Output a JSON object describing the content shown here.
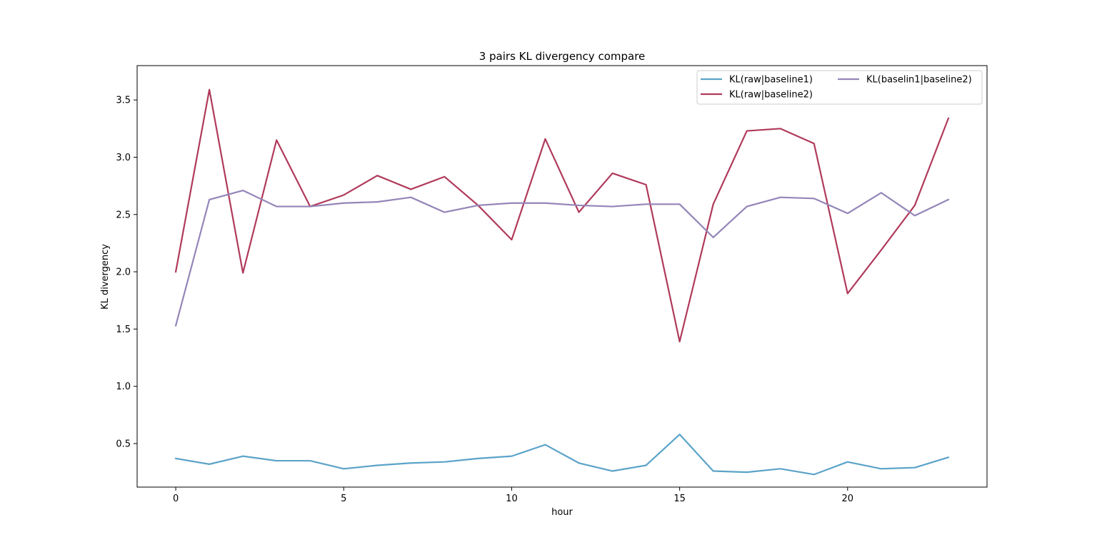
{
  "chart_data": {
    "type": "line",
    "title": "3 pairs KL divergency compare",
    "xlabel": "hour",
    "ylabel": "KL divergency",
    "xlim": [
      -1.15,
      24.15
    ],
    "ylim": [
      0.12,
      3.8
    ],
    "xticks": [
      0,
      5,
      10,
      15,
      20
    ],
    "xtick_labels": [
      "0",
      "5",
      "10",
      "15",
      "20"
    ],
    "yticks": [
      0.5,
      1.0,
      1.5,
      2.0,
      2.5,
      3.0,
      3.5
    ],
    "ytick_labels": [
      "0.5",
      "1.0",
      "1.5",
      "2.0",
      "2.5",
      "3.0",
      "3.5"
    ],
    "grid": false,
    "legend": {
      "position": "top-right",
      "columns": 2
    },
    "x": [
      0,
      1,
      2,
      3,
      4,
      5,
      6,
      7,
      8,
      9,
      10,
      11,
      12,
      13,
      14,
      15,
      16,
      17,
      18,
      19,
      20,
      21,
      22,
      23
    ],
    "series": [
      {
        "name": "KL(raw|baseline1)",
        "color": "#5ba3c9",
        "values": [
          0.37,
          0.32,
          0.39,
          0.35,
          0.35,
          0.28,
          0.31,
          0.33,
          0.34,
          0.37,
          0.39,
          0.49,
          0.33,
          0.26,
          0.31,
          0.58,
          0.26,
          0.25,
          0.28,
          0.23,
          0.34,
          0.28,
          0.29,
          0.38
        ]
      },
      {
        "name": "KL(raw|baseline2)",
        "color": "#b03a5b",
        "values": [
          2.0,
          3.59,
          1.99,
          3.15,
          2.57,
          2.67,
          2.84,
          2.72,
          2.83,
          2.58,
          2.28,
          3.16,
          2.52,
          2.86,
          2.76,
          1.39,
          2.59,
          3.23,
          3.25,
          3.12,
          1.81,
          2.19,
          2.58,
          3.34
        ]
      },
      {
        "name": "KL(baselin1|baseline2)",
        "color": "#9485b8",
        "values": [
          1.53,
          2.63,
          2.71,
          2.57,
          2.57,
          2.6,
          2.61,
          2.65,
          2.52,
          2.58,
          2.6,
          2.6,
          2.58,
          2.57,
          2.59,
          2.59,
          2.3,
          2.57,
          2.65,
          2.64,
          2.51,
          2.69,
          2.49,
          2.63
        ]
      }
    ]
  }
}
